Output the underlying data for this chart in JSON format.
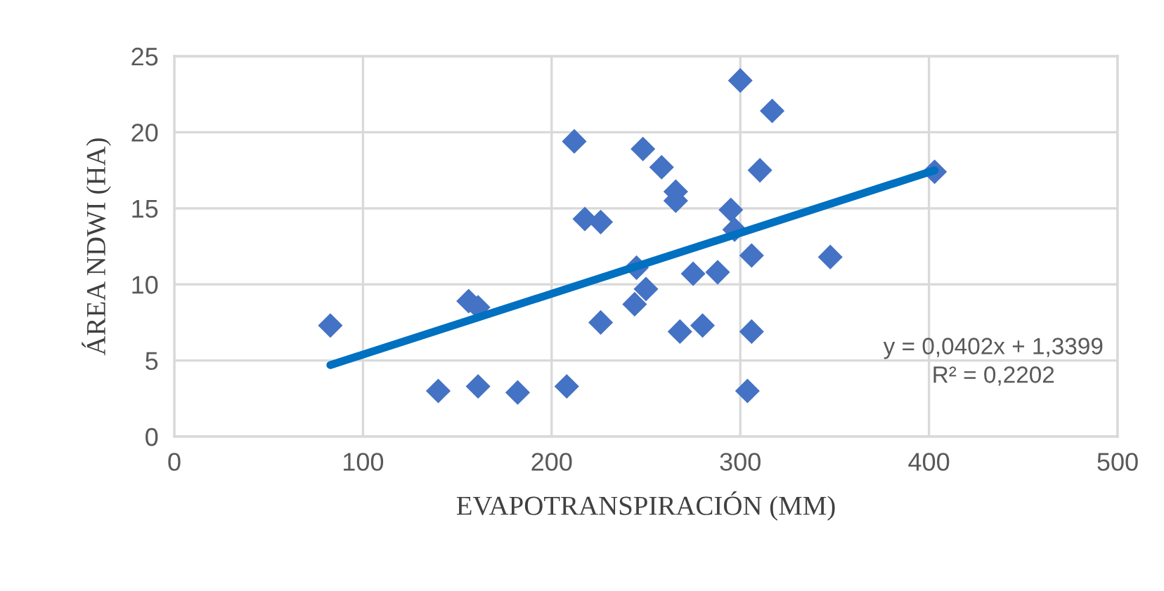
{
  "chart_data": {
    "type": "scatter",
    "xlabel": "EVAPOTRANSPIRACIÓN (MM)",
    "ylabel": "ÁREA NDWI (HA)",
    "xlim": [
      0,
      500
    ],
    "xticks": [
      0,
      100,
      200,
      300,
      400,
      500
    ],
    "ylim": [
      0,
      25
    ],
    "yticks": [
      0,
      5,
      10,
      15,
      20,
      25
    ],
    "grid": true,
    "marker": "diamond",
    "series": [
      {
        "color": "#4472c4",
        "x": [
          82.7,
          139.9,
          161,
          156,
          161,
          182,
          208,
          212,
          217.6,
          226,
          226,
          244,
          245,
          248.4,
          258.3,
          265.8,
          265.8,
          250,
          268,
          280,
          275,
          288,
          295,
          297,
          300,
          316.9,
          310.4,
          306,
          306,
          303.8,
          347.7,
          403
        ],
        "values": [
          7.3,
          3.0,
          3.3,
          8.9,
          8.5,
          2.9,
          3.3,
          19.4,
          14.3,
          14.1,
          7.5,
          8.7,
          11.1,
          18.9,
          17.7,
          16.1,
          15.5,
          9.7,
          6.9,
          7.3,
          10.7,
          10.8,
          14.9,
          13.6,
          23.4,
          21.4,
          17.5,
          11.9,
          6.9,
          3.0,
          11.8,
          17.4
        ]
      },
      {
        "type": "line",
        "color": "#0070c0",
        "marker": "none",
        "x": [
          82.7,
          403
        ],
        "values": [
          4.7,
          17.5
        ]
      }
    ],
    "annotations": [
      "y = 0,0402x + 1,3399",
      "R² = 0,2202"
    ]
  }
}
